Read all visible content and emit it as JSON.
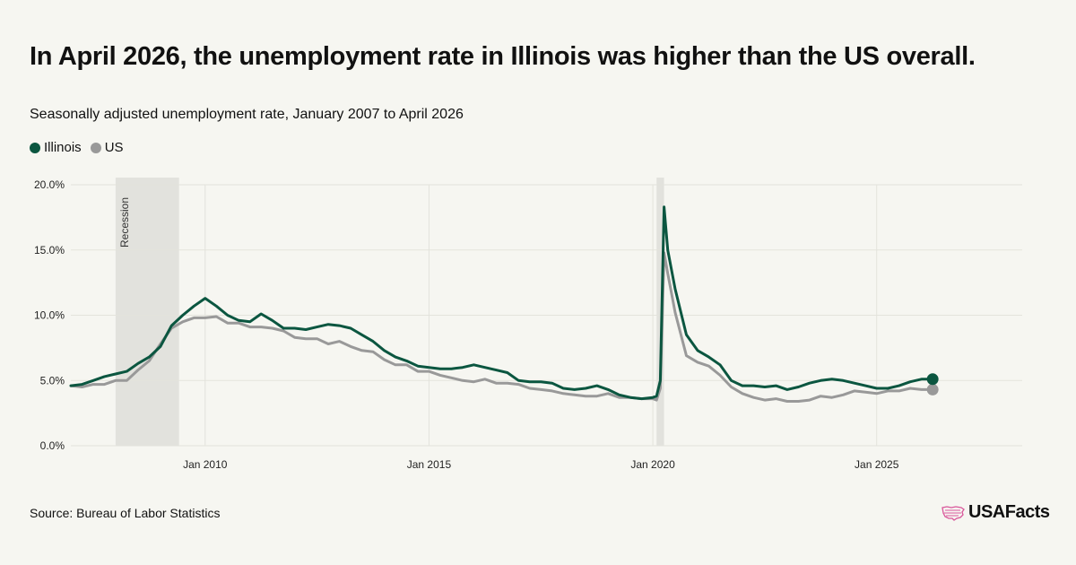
{
  "title": "In April 2026, the unemployment rate in Illinois was higher than the US overall.",
  "subtitle": "Seasonally adjusted unemployment rate, January 2007 to April 2026",
  "source": "Source: Bureau of Labor Statistics",
  "brand": "USAFacts",
  "legend": [
    {
      "name": "Illinois",
      "color": "#0b5640"
    },
    {
      "name": "US",
      "color": "#999999"
    }
  ],
  "colors": {
    "illinois": "#0b5640",
    "us": "#999999",
    "recession": "#e2e2dd",
    "grid": "#e3e3dc"
  },
  "chart_data": {
    "type": "line",
    "title": "In April 2026, the unemployment rate in Illinois was higher than the US overall.",
    "subtitle": "Seasonally adjusted unemployment rate, January 2007 to April 2026",
    "x_range": [
      "2007-01",
      "2028-04"
    ],
    "ylim": [
      0,
      20
    ],
    "y_ticks": [
      {
        "value": 0,
        "label": "0.0%"
      },
      {
        "value": 5,
        "label": "5.0%"
      },
      {
        "value": 10,
        "label": "10.0%"
      },
      {
        "value": 15,
        "label": "15.0%"
      },
      {
        "value": 20,
        "label": "20.0%"
      }
    ],
    "x_ticks": [
      {
        "value": "2010-01",
        "label": "Jan 2010"
      },
      {
        "value": "2015-01",
        "label": "Jan 2015"
      },
      {
        "value": "2020-01",
        "label": "Jan 2020"
      },
      {
        "value": "2025-01",
        "label": "Jan 2025"
      }
    ],
    "grid": true,
    "legend_position": "top-left",
    "recessions": [
      {
        "start": "2008-01",
        "end": "2009-06",
        "label": "Recession"
      },
      {
        "start": "2020-02",
        "end": "2020-04",
        "label": ""
      }
    ],
    "series": [
      {
        "name": "Illinois",
        "color": "#0b5640",
        "points": [
          [
            "2007-01",
            4.6
          ],
          [
            "2007-04",
            4.7
          ],
          [
            "2007-07",
            5.0
          ],
          [
            "2007-10",
            5.3
          ],
          [
            "2008-01",
            5.5
          ],
          [
            "2008-04",
            5.7
          ],
          [
            "2008-07",
            6.3
          ],
          [
            "2008-10",
            6.8
          ],
          [
            "2009-01",
            7.6
          ],
          [
            "2009-04",
            9.2
          ],
          [
            "2009-07",
            10.0
          ],
          [
            "2009-10",
            10.7
          ],
          [
            "2010-01",
            11.3
          ],
          [
            "2010-04",
            10.7
          ],
          [
            "2010-07",
            10.0
          ],
          [
            "2010-10",
            9.6
          ],
          [
            "2011-01",
            9.5
          ],
          [
            "2011-04",
            10.1
          ],
          [
            "2011-07",
            9.6
          ],
          [
            "2011-10",
            9.0
          ],
          [
            "2012-01",
            9.0
          ],
          [
            "2012-04",
            8.9
          ],
          [
            "2012-07",
            9.1
          ],
          [
            "2012-10",
            9.3
          ],
          [
            "2013-01",
            9.2
          ],
          [
            "2013-04",
            9.0
          ],
          [
            "2013-07",
            8.5
          ],
          [
            "2013-10",
            8.0
          ],
          [
            "2014-01",
            7.3
          ],
          [
            "2014-04",
            6.8
          ],
          [
            "2014-07",
            6.5
          ],
          [
            "2014-10",
            6.1
          ],
          [
            "2015-01",
            6.0
          ],
          [
            "2015-04",
            5.9
          ],
          [
            "2015-07",
            5.9
          ],
          [
            "2015-10",
            6.0
          ],
          [
            "2016-01",
            6.2
          ],
          [
            "2016-04",
            6.0
          ],
          [
            "2016-07",
            5.8
          ],
          [
            "2016-10",
            5.6
          ],
          [
            "2017-01",
            5.0
          ],
          [
            "2017-04",
            4.9
          ],
          [
            "2017-07",
            4.9
          ],
          [
            "2017-10",
            4.8
          ],
          [
            "2018-01",
            4.4
          ],
          [
            "2018-04",
            4.3
          ],
          [
            "2018-07",
            4.4
          ],
          [
            "2018-10",
            4.6
          ],
          [
            "2019-01",
            4.3
          ],
          [
            "2019-04",
            3.9
          ],
          [
            "2019-07",
            3.7
          ],
          [
            "2019-10",
            3.6
          ],
          [
            "2020-01",
            3.7
          ],
          [
            "2020-02",
            3.8
          ],
          [
            "2020-03",
            5.0
          ],
          [
            "2020-04",
            18.3
          ],
          [
            "2020-05",
            15.0
          ],
          [
            "2020-07",
            12.0
          ],
          [
            "2020-10",
            8.5
          ],
          [
            "2021-01",
            7.3
          ],
          [
            "2021-04",
            6.8
          ],
          [
            "2021-07",
            6.2
          ],
          [
            "2021-10",
            5.0
          ],
          [
            "2022-01",
            4.6
          ],
          [
            "2022-04",
            4.6
          ],
          [
            "2022-07",
            4.5
          ],
          [
            "2022-10",
            4.6
          ],
          [
            "2023-01",
            4.3
          ],
          [
            "2023-04",
            4.5
          ],
          [
            "2023-07",
            4.8
          ],
          [
            "2023-10",
            5.0
          ],
          [
            "2024-01",
            5.1
          ],
          [
            "2024-04",
            5.0
          ],
          [
            "2024-07",
            4.8
          ],
          [
            "2024-10",
            4.6
          ],
          [
            "2025-01",
            4.4
          ],
          [
            "2025-04",
            4.4
          ],
          [
            "2025-07",
            4.6
          ],
          [
            "2025-10",
            4.9
          ],
          [
            "2026-01",
            5.1
          ],
          [
            "2026-04",
            5.1
          ]
        ]
      },
      {
        "name": "US",
        "color": "#999999",
        "points": [
          [
            "2007-01",
            4.6
          ],
          [
            "2007-04",
            4.5
          ],
          [
            "2007-07",
            4.7
          ],
          [
            "2007-10",
            4.7
          ],
          [
            "2008-01",
            5.0
          ],
          [
            "2008-04",
            5.0
          ],
          [
            "2008-07",
            5.8
          ],
          [
            "2008-10",
            6.5
          ],
          [
            "2009-01",
            7.8
          ],
          [
            "2009-04",
            9.0
          ],
          [
            "2009-07",
            9.5
          ],
          [
            "2009-10",
            9.8
          ],
          [
            "2010-01",
            9.8
          ],
          [
            "2010-04",
            9.9
          ],
          [
            "2010-07",
            9.4
          ],
          [
            "2010-10",
            9.4
          ],
          [
            "2011-01",
            9.1
          ],
          [
            "2011-04",
            9.1
          ],
          [
            "2011-07",
            9.0
          ],
          [
            "2011-10",
            8.8
          ],
          [
            "2012-01",
            8.3
          ],
          [
            "2012-04",
            8.2
          ],
          [
            "2012-07",
            8.2
          ],
          [
            "2012-10",
            7.8
          ],
          [
            "2013-01",
            8.0
          ],
          [
            "2013-04",
            7.6
          ],
          [
            "2013-07",
            7.3
          ],
          [
            "2013-10",
            7.2
          ],
          [
            "2014-01",
            6.6
          ],
          [
            "2014-04",
            6.2
          ],
          [
            "2014-07",
            6.2
          ],
          [
            "2014-10",
            5.7
          ],
          [
            "2015-01",
            5.7
          ],
          [
            "2015-04",
            5.4
          ],
          [
            "2015-07",
            5.2
          ],
          [
            "2015-10",
            5.0
          ],
          [
            "2016-01",
            4.9
          ],
          [
            "2016-04",
            5.1
          ],
          [
            "2016-07",
            4.8
          ],
          [
            "2016-10",
            4.8
          ],
          [
            "2017-01",
            4.7
          ],
          [
            "2017-04",
            4.4
          ],
          [
            "2017-07",
            4.3
          ],
          [
            "2017-10",
            4.2
          ],
          [
            "2018-01",
            4.0
          ],
          [
            "2018-04",
            3.9
          ],
          [
            "2018-07",
            3.8
          ],
          [
            "2018-10",
            3.8
          ],
          [
            "2019-01",
            4.0
          ],
          [
            "2019-04",
            3.7
          ],
          [
            "2019-07",
            3.7
          ],
          [
            "2019-10",
            3.6
          ],
          [
            "2020-01",
            3.6
          ],
          [
            "2020-02",
            3.5
          ],
          [
            "2020-03",
            4.4
          ],
          [
            "2020-04",
            14.8
          ],
          [
            "2020-05",
            13.2
          ],
          [
            "2020-07",
            10.2
          ],
          [
            "2020-10",
            6.9
          ],
          [
            "2021-01",
            6.4
          ],
          [
            "2021-04",
            6.1
          ],
          [
            "2021-07",
            5.4
          ],
          [
            "2021-10",
            4.5
          ],
          [
            "2022-01",
            4.0
          ],
          [
            "2022-04",
            3.7
          ],
          [
            "2022-07",
            3.5
          ],
          [
            "2022-10",
            3.6
          ],
          [
            "2023-01",
            3.4
          ],
          [
            "2023-04",
            3.4
          ],
          [
            "2023-07",
            3.5
          ],
          [
            "2023-10",
            3.8
          ],
          [
            "2024-01",
            3.7
          ],
          [
            "2024-04",
            3.9
          ],
          [
            "2024-07",
            4.2
          ],
          [
            "2024-10",
            4.1
          ],
          [
            "2025-01",
            4.0
          ],
          [
            "2025-04",
            4.2
          ],
          [
            "2025-07",
            4.2
          ],
          [
            "2025-10",
            4.4
          ],
          [
            "2026-01",
            4.3
          ],
          [
            "2026-04",
            4.3
          ]
        ]
      }
    ]
  }
}
